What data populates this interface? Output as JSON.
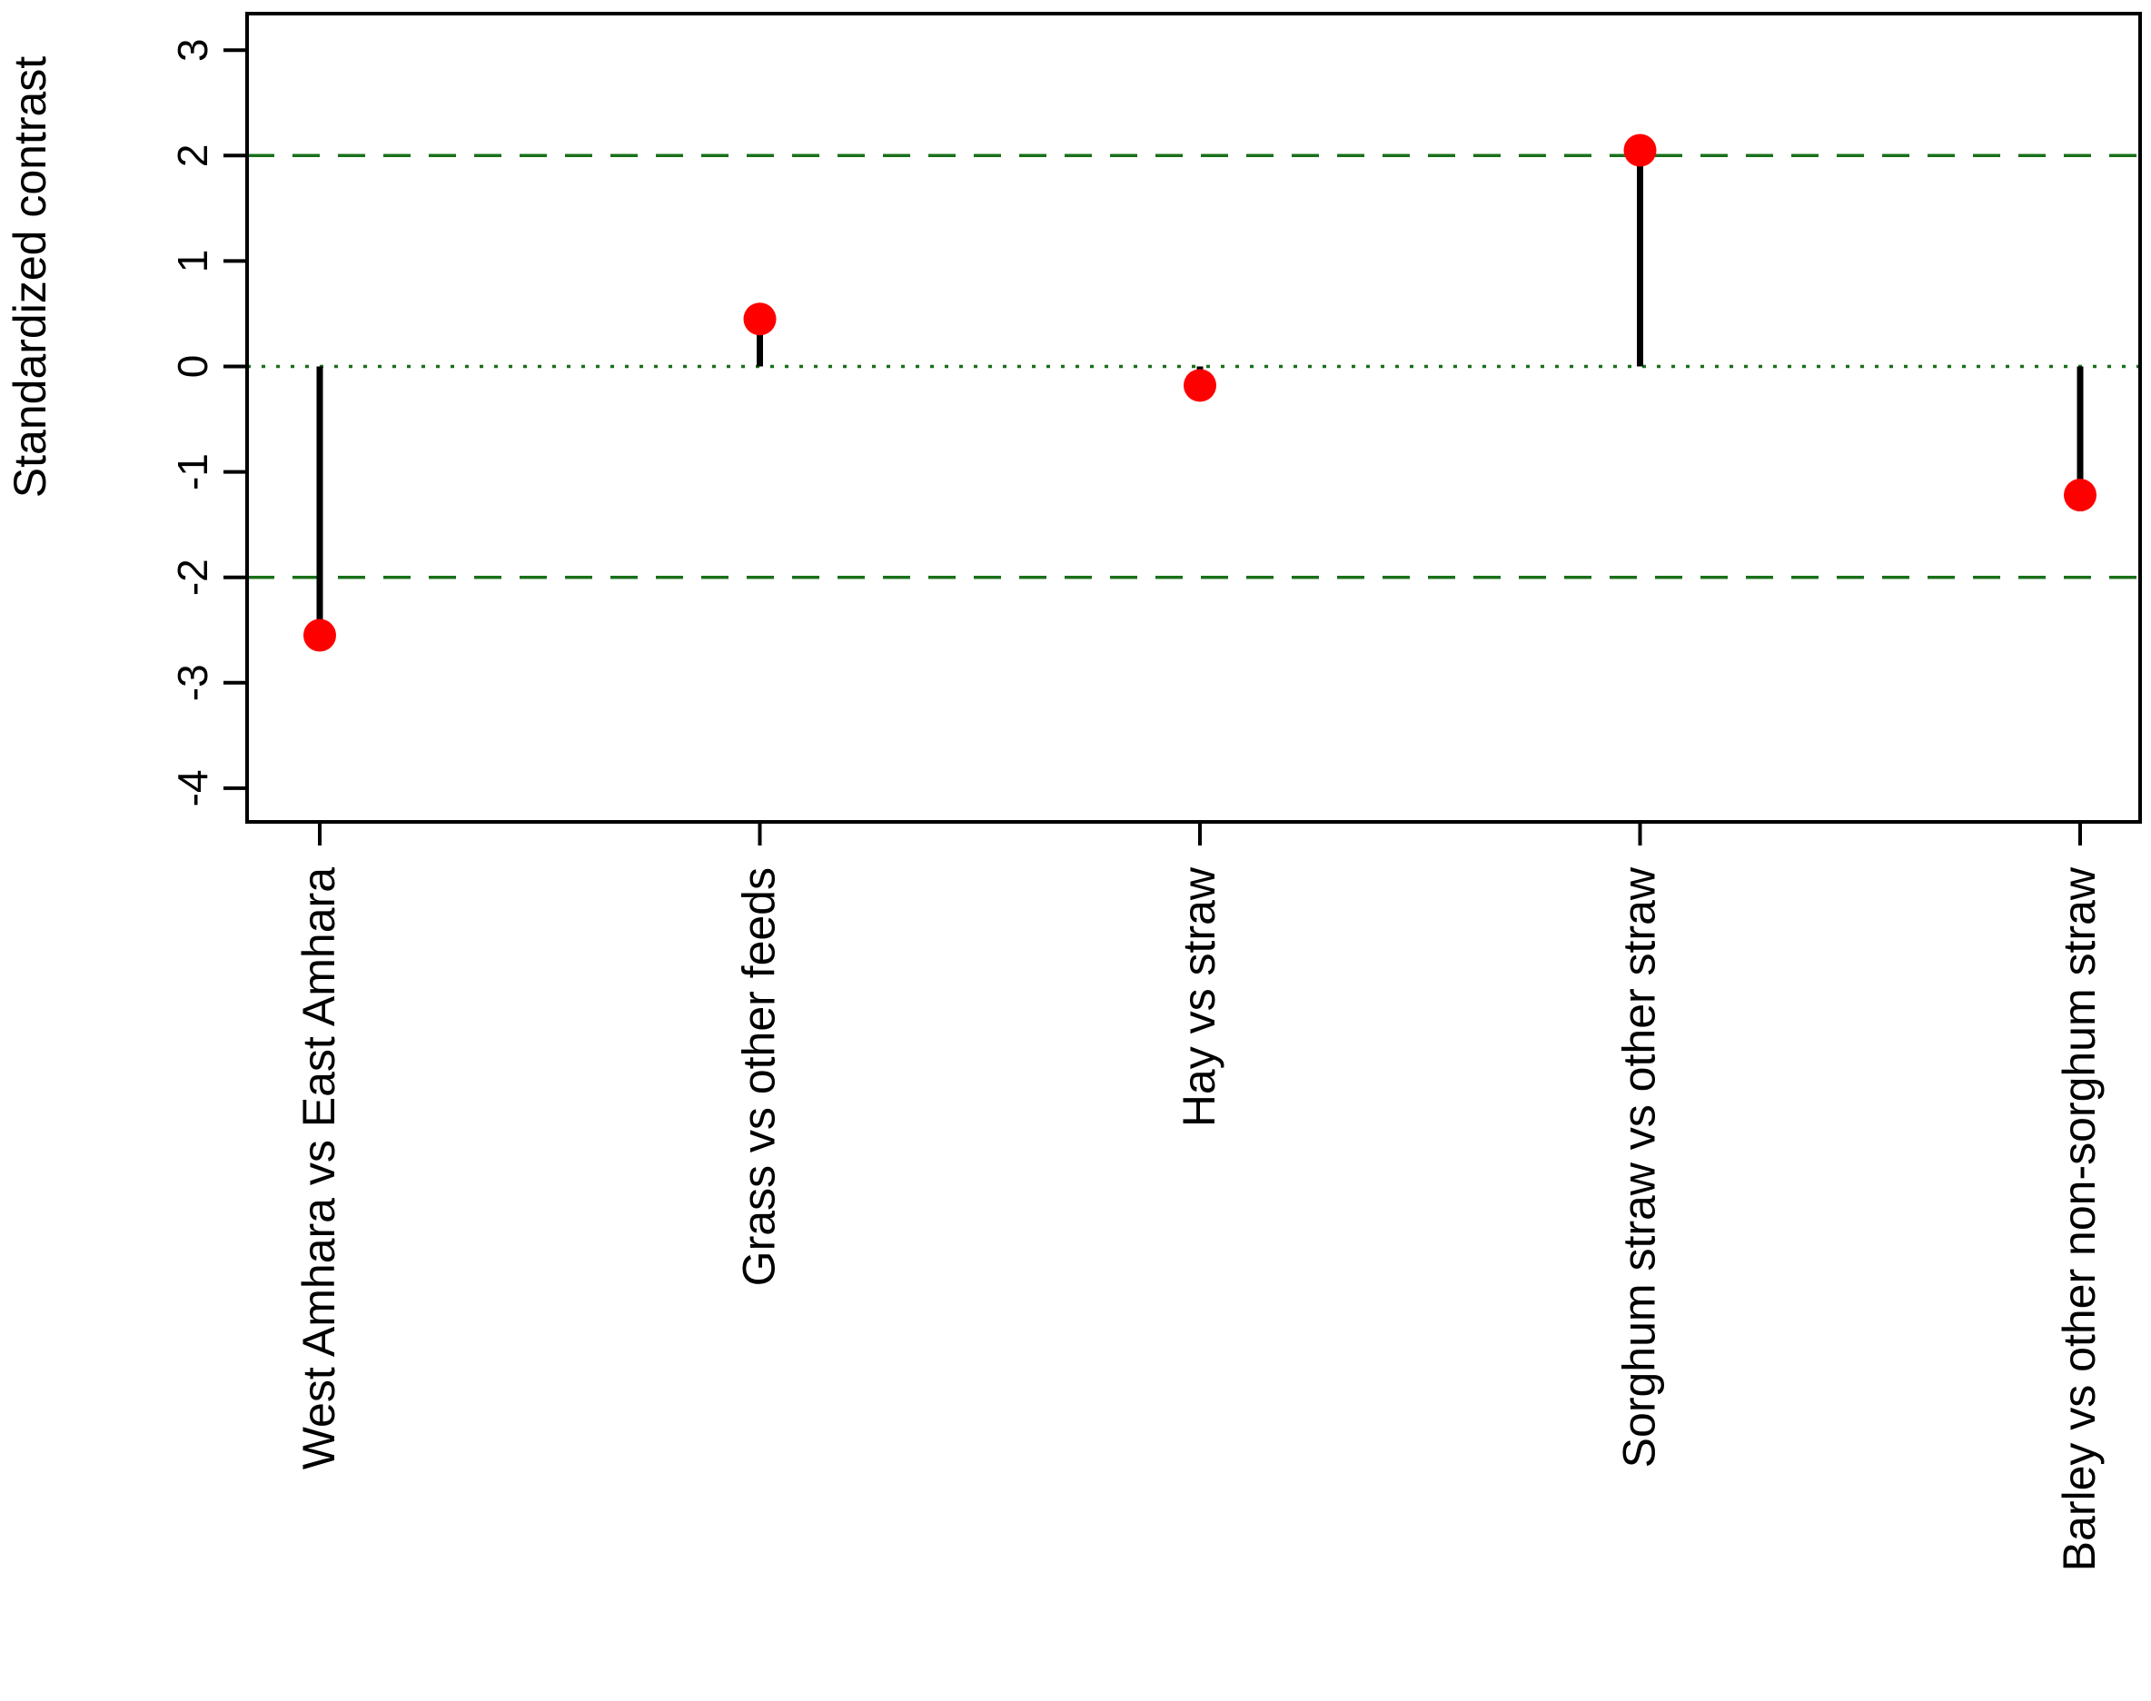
{
  "chart_data": {
    "type": "lollipop",
    "title": "",
    "xlabel": "",
    "ylabel": "Standardized contrast",
    "categories": [
      "West Amhara vs East Amhara",
      "Grass vs other feeds",
      "Hay vs straw",
      "Sorghum straw vs other straw",
      "Barley vs other non-sorghum straw"
    ],
    "values": [
      -2.55,
      0.45,
      -0.18,
      2.05,
      -1.22
    ],
    "baseline": 0,
    "ylim": [
      -4,
      3
    ],
    "yticks": [
      3,
      2,
      1,
      0,
      -1,
      -2,
      -3,
      -4
    ],
    "reference_lines": [
      {
        "y": 2,
        "style": "dashed"
      },
      {
        "y": 0,
        "style": "dotted"
      },
      {
        "y": -2,
        "style": "dashed"
      }
    ],
    "legend": "none",
    "grid": "off",
    "colors": {
      "point": "#ff0000",
      "stem": "#000000",
      "reference": "#1a701a",
      "axis": "#000000",
      "background": "#ffffff"
    }
  }
}
